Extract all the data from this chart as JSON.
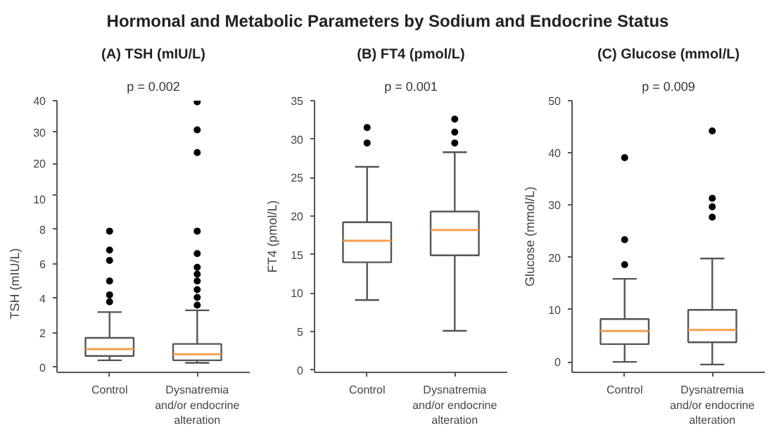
{
  "chart_data": [
    {
      "type": "scatter",
      "title": "(A) TSH (mIU/L)",
      "subtitle": "p = 0.002",
      "annotations": [
        "Hormonal and Metabolic Parameters by Sodium and Endocrine Status"
      ],
      "categories": [
        "Control",
        "Dysnatremia and/or endocrine alteration"
      ],
      "tick_labels": "y",
      "marker": "circle",
      "ylim": [
        10,
        40
      ],
      "yticks": [
        20,
        30,
        40
      ],
      "grid": false,
      "series": [
        {
          "color": "#000000",
          "x": [
            "Dysnatremia and/or endocrine alteration",
            "Dysnatremia and/or endocrine alteration",
            "Dysnatremia and/or endocrine alteration"
          ],
          "values": [
            23.5,
            30.7,
            39.6
          ]
        }
      ]
    },
    {
      "type": "box",
      "ylabel": "TSH (mIU/L)",
      "categories": [
        "Control",
        "Dysnatremia and/or endocrine alteration"
      ],
      "color": "#555555",
      "ylim": [
        -0.3,
        10
      ],
      "yticks": [
        0,
        2,
        4,
        6,
        8,
        10
      ],
      "grid": false,
      "boxes": [
        {
          "low": 0.4,
          "q1": 0.65,
          "median": 1.05,
          "q3": 1.7,
          "high": 3.2,
          "outliers": [
            3.8,
            4.2,
            5.0,
            6.2,
            6.8,
            7.9
          ]
        },
        {
          "low": 0.25,
          "q1": 0.4,
          "median": 0.75,
          "q3": 1.35,
          "high": 3.3,
          "outliers": [
            3.6,
            4.05,
            4.5,
            5.0,
            5.4,
            5.8,
            6.6,
            7.9
          ]
        }
      ]
    },
    {
      "type": "box",
      "title": "(B) FT4 (pmol/L)",
      "subtitle": "p = 0.001",
      "ylabel": "FT4 (pmol/L)",
      "categories": [
        "Control",
        "Dysnatremia and/or endocrine alteration"
      ],
      "color": "#555555",
      "ylim": [
        -0.3,
        35
      ],
      "yticks": [
        0,
        5,
        10,
        15,
        20,
        25,
        30,
        35
      ],
      "grid": false,
      "boxes": [
        {
          "low": 9.1,
          "q1": 14.0,
          "median": 16.8,
          "q3": 19.2,
          "high": 26.4,
          "outliers": [
            29.5,
            31.5
          ]
        },
        {
          "low": 5.1,
          "q1": 14.9,
          "median": 18.2,
          "q3": 20.6,
          "high": 28.3,
          "outliers": [
            29.5,
            30.9,
            32.6
          ]
        }
      ]
    },
    {
      "type": "box",
      "title": "(C) Glucose (mmol/L)",
      "subtitle": "p = 0.009",
      "ylabel": "Glucose (mmol/L)",
      "categories": [
        "Control",
        "Dysnatremia and/or endocrine alteration"
      ],
      "color": "#555555",
      "ylim": [
        -2,
        50
      ],
      "yticks": [
        0,
        10,
        20,
        30,
        40,
        50
      ],
      "grid": false,
      "boxes": [
        {
          "low": 0.0,
          "q1": 3.4,
          "median": 5.9,
          "q3": 8.2,
          "high": 15.9,
          "outliers": [
            18.6,
            23.4,
            39.1
          ]
        },
        {
          "low": -0.5,
          "q1": 3.75,
          "median": 6.1,
          "q3": 9.95,
          "high": 19.8,
          "outliers": [
            27.7,
            29.7,
            31.3,
            44.2
          ]
        }
      ]
    }
  ]
}
